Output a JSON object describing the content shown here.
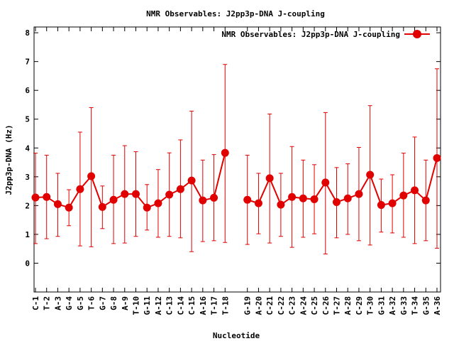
{
  "chart_data": {
    "type": "line",
    "title": "NMR Observables: J2pp3p-DNA J-coupling",
    "xlabel": "Nucleotide",
    "ylabel": "J2pp3p-DNA (Hz)",
    "ylim": [
      -1,
      8.2
    ],
    "yticks": [
      0,
      1,
      2,
      3,
      4,
      5,
      6,
      7,
      8
    ],
    "grid": false,
    "legend_position": "top-right",
    "colors": {
      "series": "#e00000",
      "axis": "#000000",
      "background": "#ffffff"
    },
    "categories": [
      "C-1",
      "T-2",
      "A-3",
      "G-4",
      "G-5",
      "T-6",
      "G-7",
      "G-8",
      "A-9",
      "T-10",
      "G-11",
      "A-12",
      "C-13",
      "C-14",
      "C-15",
      "A-16",
      "T-17",
      "T-18",
      "G-19",
      "A-20",
      "C-21",
      "C-22",
      "C-23",
      "A-24",
      "C-25",
      "C-26",
      "T-27",
      "A-28",
      "C-29",
      "T-30",
      "G-31",
      "A-32",
      "G-33",
      "T-34",
      "G-35",
      "A-36"
    ],
    "series": [
      {
        "name": "NMR Observables: J2pp3p-DNA J-coupling",
        "segments": [
          {
            "start_index": 0,
            "values": [
              2.28,
              2.3,
              2.05,
              1.93,
              2.57,
              3.02,
              1.95,
              2.2,
              2.4,
              2.4,
              1.93,
              2.08,
              2.38,
              2.57,
              2.87,
              2.18,
              2.27,
              3.83
            ],
            "err_low": [
              0.68,
              0.85,
              0.93,
              1.3,
              0.6,
              0.57,
              1.2,
              0.68,
              0.7,
              0.93,
              1.15,
              0.9,
              0.93,
              0.88,
              0.4,
              0.75,
              0.78,
              0.72
            ],
            "err_high": [
              3.82,
              3.75,
              3.12,
              2.55,
              4.55,
              5.4,
              2.68,
              3.75,
              4.08,
              3.87,
              2.73,
              3.25,
              3.83,
              4.28,
              5.28,
              3.58,
              3.77,
              6.9
            ]
          },
          {
            "start_index": 18,
            "values": [
              2.2,
              2.08,
              2.95,
              2.03,
              2.3,
              2.25,
              2.22,
              2.8,
              2.12,
              2.25,
              2.4,
              3.07,
              2.02,
              2.08,
              2.35,
              2.53,
              2.18,
              3.65
            ],
            "err_low": [
              0.65,
              1.02,
              0.7,
              0.93,
              0.55,
              0.9,
              1.02,
              0.32,
              0.88,
              1.0,
              0.78,
              0.63,
              1.08,
              1.05,
              0.9,
              0.68,
              0.78,
              0.52
            ],
            "err_high": [
              3.75,
              3.12,
              5.18,
              3.12,
              4.05,
              3.58,
              3.42,
              5.23,
              3.32,
              3.45,
              4.02,
              5.47,
              2.92,
              3.07,
              3.82,
              4.38,
              3.58,
              6.75
            ]
          }
        ]
      }
    ]
  }
}
